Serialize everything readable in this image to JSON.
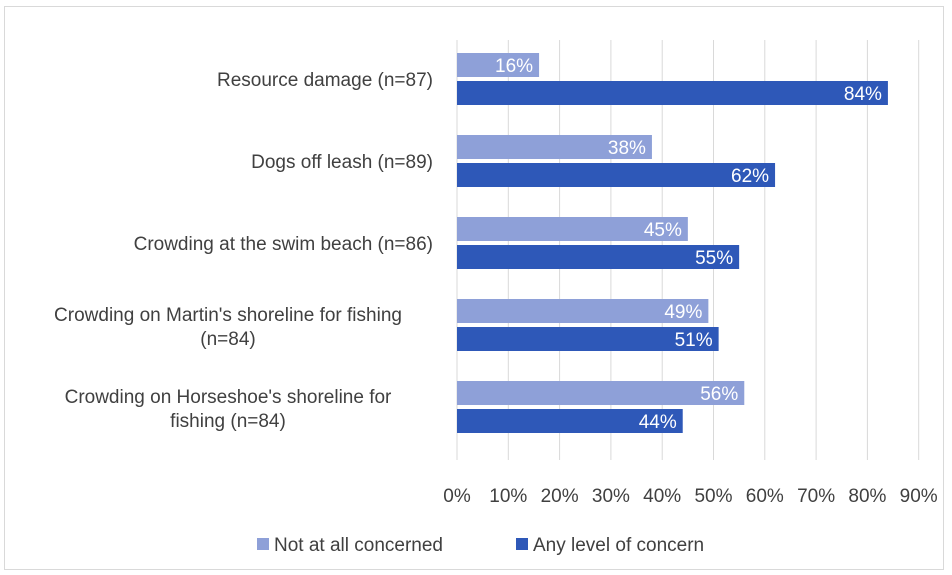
{
  "chart_data": {
    "type": "bar",
    "orientation": "horizontal",
    "categories": [
      "Resource damage (n=87)",
      "Dogs off leash (n=89)",
      "Crowding at the swim beach (n=86)",
      "Crowding on Martin's shoreline for fishing (n=84)",
      "Crowding on Horseshoe's shoreline for fishing (n=84)"
    ],
    "category_lines": [
      [
        "Resource damage (n=87)"
      ],
      [
        "Dogs off leash (n=89)"
      ],
      [
        "Crowding at the swim beach (n=86)"
      ],
      [
        "Crowding on Martin's shoreline for fishing",
        "(n=84)"
      ],
      [
        "Crowding on Horseshoe's shoreline for",
        "fishing (n=84)"
      ]
    ],
    "series": [
      {
        "name": "Not at all concerned",
        "color": "#8ea0d8",
        "values": [
          16,
          38,
          45,
          49,
          56
        ],
        "labels": [
          "16%",
          "38%",
          "45%",
          "49%",
          "56%"
        ]
      },
      {
        "name": "Any level of concern",
        "color": "#2e58b8",
        "values": [
          84,
          62,
          55,
          51,
          44
        ],
        "labels": [
          "84%",
          "62%",
          "55%",
          "51%",
          "44%"
        ]
      }
    ],
    "xlim": [
      0,
      90
    ],
    "xticks": [
      0,
      10,
      20,
      30,
      40,
      50,
      60,
      70,
      80,
      90
    ],
    "xtick_labels": [
      "0%",
      "10%",
      "20%",
      "30%",
      "40%",
      "50%",
      "60%",
      "70%",
      "80%",
      "90%"
    ],
    "grid": true,
    "legend_position": "bottom",
    "title": "",
    "xlabel": "",
    "ylabel": ""
  }
}
